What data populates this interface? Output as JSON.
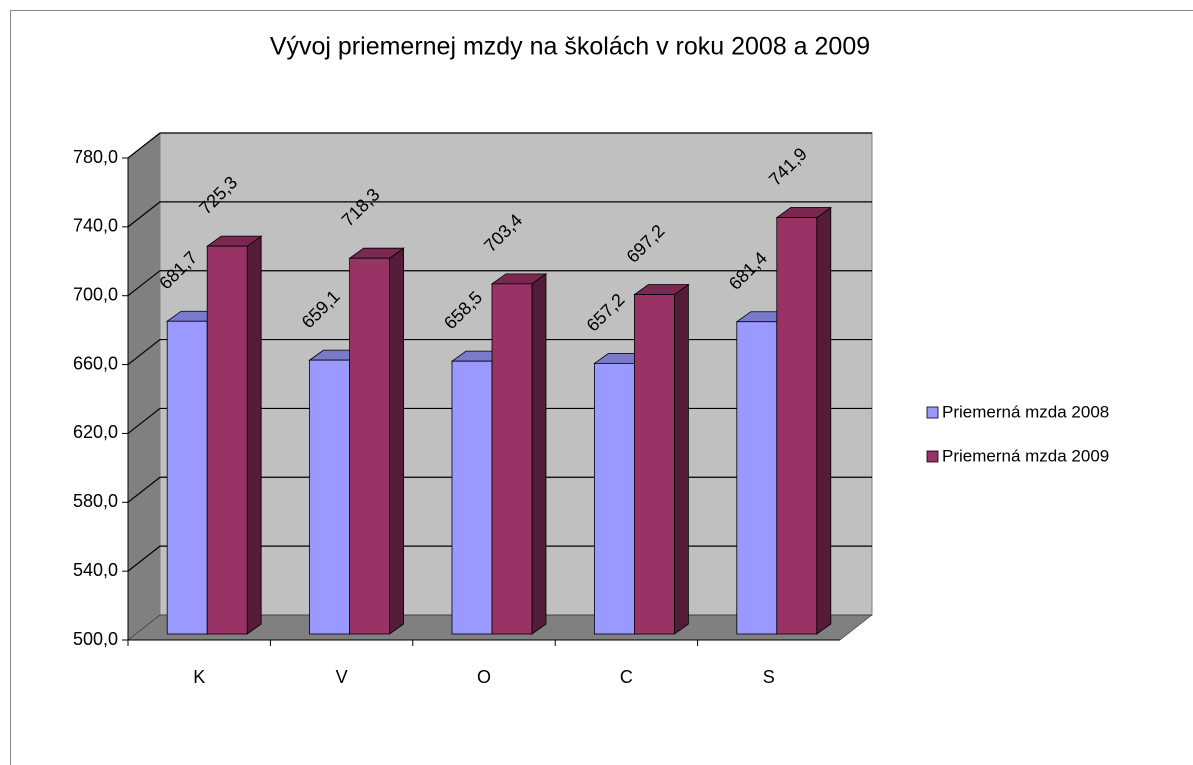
{
  "chart_data": {
    "type": "bar3d",
    "title": "Vývoj priemernej mzdy na školách v roku 2008 a 2009",
    "categories": [
      "K",
      "V",
      "O",
      "C",
      "S"
    ],
    "series": [
      {
        "name": "Priemerná mzda 2008",
        "color": "#9999ff",
        "values": [
          681.7,
          659.1,
          658.5,
          657.2,
          681.4
        ],
        "value_labels": [
          "681,7",
          "659,1",
          "658,5",
          "657,2",
          "681,4"
        ]
      },
      {
        "name": "Priemerná mzda 2009",
        "color": "#993366",
        "values": [
          725.3,
          718.3,
          703.4,
          697.2,
          741.9
        ],
        "value_labels": [
          "725,3",
          "718,3",
          "703,4",
          "697,2",
          "741,9"
        ]
      }
    ],
    "ylim": [
      500,
      780
    ],
    "yticks": [
      {
        "value": 500,
        "label": "500,0"
      },
      {
        "value": 540,
        "label": "540,0"
      },
      {
        "value": 580,
        "label": "580,0"
      },
      {
        "value": 620,
        "label": "620,0"
      },
      {
        "value": 660,
        "label": "660,0"
      },
      {
        "value": 700,
        "label": "700,0"
      },
      {
        "value": 740,
        "label": "740,0"
      },
      {
        "value": 780,
        "label": "780,0"
      }
    ],
    "grid": true,
    "legend": "right"
  }
}
